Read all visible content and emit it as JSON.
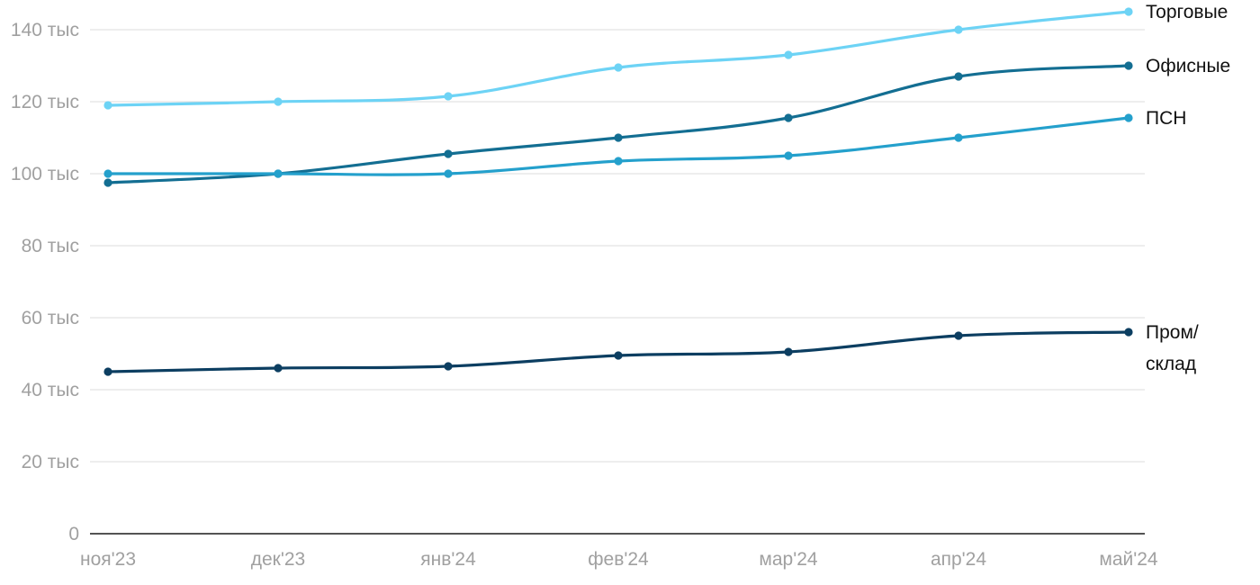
{
  "chart_data": {
    "type": "line",
    "title": "",
    "xlabel": "",
    "ylabel": "",
    "x": [
      "ноя'23",
      "дек'23",
      "янв'24",
      "фев'24",
      "мар'24",
      "апр'24",
      "май'24"
    ],
    "ylim": [
      0,
      150000
    ],
    "y_ticks": [
      0,
      20000,
      40000,
      60000,
      80000,
      100000,
      120000,
      140000
    ],
    "y_tick_labels": [
      "0",
      "20 тыс",
      "40 тыс",
      "60 тыс",
      "80 тыс",
      "100 тыс",
      "120 тыс",
      "140 тыс"
    ],
    "grid": true,
    "legend": "direct labels at line ends (right)",
    "series": [
      {
        "name": "Торговые",
        "label_lines": [
          "Торговые"
        ],
        "color": "#6dd3f5",
        "values": [
          119000,
          120000,
          121500,
          129500,
          133000,
          140000,
          145000
        ]
      },
      {
        "name": "Офисные",
        "label_lines": [
          "Офисные"
        ],
        "color": "#136e92",
        "values": [
          97500,
          100000,
          105500,
          110000,
          115500,
          127000,
          130000
        ]
      },
      {
        "name": "ПСН",
        "label_lines": [
          "ПСН"
        ],
        "color": "#24a0cc",
        "values": [
          100000,
          100000,
          100000,
          103500,
          105000,
          110000,
          115500
        ]
      },
      {
        "name": "Пром/ склад",
        "label_lines": [
          "Пром/",
          "склад"
        ],
        "color": "#0c3e61",
        "values": [
          45000,
          46000,
          46500,
          49500,
          50500,
          55000,
          56000
        ]
      }
    ]
  }
}
